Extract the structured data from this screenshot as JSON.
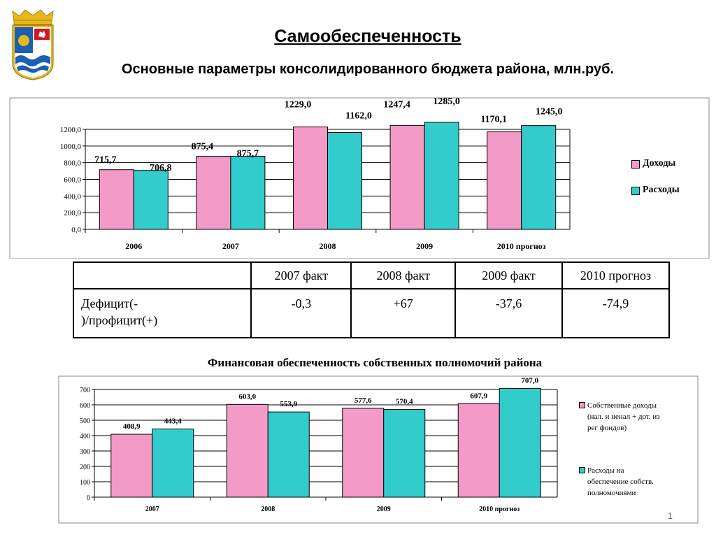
{
  "header": {
    "title": "Самообеспеченность",
    "subtitle": "Основные параметры консолидированного бюджета района, млн.руб."
  },
  "colors": {
    "income": "#f49ac6",
    "expense": "#33cccc",
    "gold": "#e8b81a",
    "shield_blue": "#1a5fb0",
    "shield_red": "#d01828"
  },
  "chart_data": [
    {
      "type": "bar",
      "categories": [
        "2006",
        "2007",
        "2008",
        "2009",
        "2010 прогноз"
      ],
      "series": [
        {
          "name": "Доходы",
          "values": [
            715.7,
            875.4,
            1229.0,
            1247.4,
            1170.1
          ]
        },
        {
          "name": "Расходы",
          "values": [
            706.8,
            875.7,
            1162.0,
            1285.0,
            1245.0
          ]
        }
      ],
      "value_labels": [
        [
          "715,7",
          "875,4",
          "1229,0",
          "1247,4",
          "1170,1"
        ],
        [
          "706,8",
          "875,7",
          "1162,0",
          "1285,0",
          "1245,0"
        ]
      ],
      "y_ticks": [
        "0,0",
        "200,0",
        "400,0",
        "600,0",
        "800,0",
        "1000,0",
        "1200,0"
      ],
      "ylim": [
        0,
        1200
      ],
      "grid": true,
      "legend": "right"
    },
    {
      "type": "bar",
      "title": "Финансовая обеспеченность собственных полномочий района",
      "categories": [
        "2007",
        "2008",
        "2009",
        "2010 прогноз"
      ],
      "series": [
        {
          "name": "Собственные доходы (нал. и ненал + дот. из рег фондов)",
          "values": [
            408.9,
            603.0,
            577.6,
            607.9
          ]
        },
        {
          "name": "Расходы на обеспечение собств. полномочиями",
          "values": [
            443.4,
            553.9,
            570.4,
            707.0
          ]
        }
      ],
      "value_labels": [
        [
          "408,9",
          "603,0",
          "577,6",
          "607,9"
        ],
        [
          "443,4",
          "553,9",
          "570,4",
          "707,0"
        ]
      ],
      "y_ticks": [
        "0",
        "100",
        "200",
        "300",
        "400",
        "500",
        "600",
        "700"
      ],
      "ylim": [
        0,
        700
      ],
      "grid": true,
      "legend": "right"
    }
  ],
  "legend1": {
    "income": "Доходы",
    "expense": "Расходы"
  },
  "legend2": {
    "income_lines": [
      "Собственные доходы",
      "(нал. и ненал + дот. из",
      "рег фондов)"
    ],
    "expense_lines": [
      "Расходы на",
      "обеспечение собств.",
      "полномочиями"
    ]
  },
  "table": {
    "columns": [
      "",
      "2007 факт",
      "2008 факт",
      "2009 факт",
      "2010 прогноз"
    ],
    "row_label_lines": [
      "Дефицит(-",
      ")/профицит(+)"
    ],
    "values": [
      "-0,3",
      "+67",
      "-37,6",
      "-74,9"
    ]
  },
  "chart2_title": "Финансовая обеспеченность собственных полномочий района",
  "page_number": "1"
}
